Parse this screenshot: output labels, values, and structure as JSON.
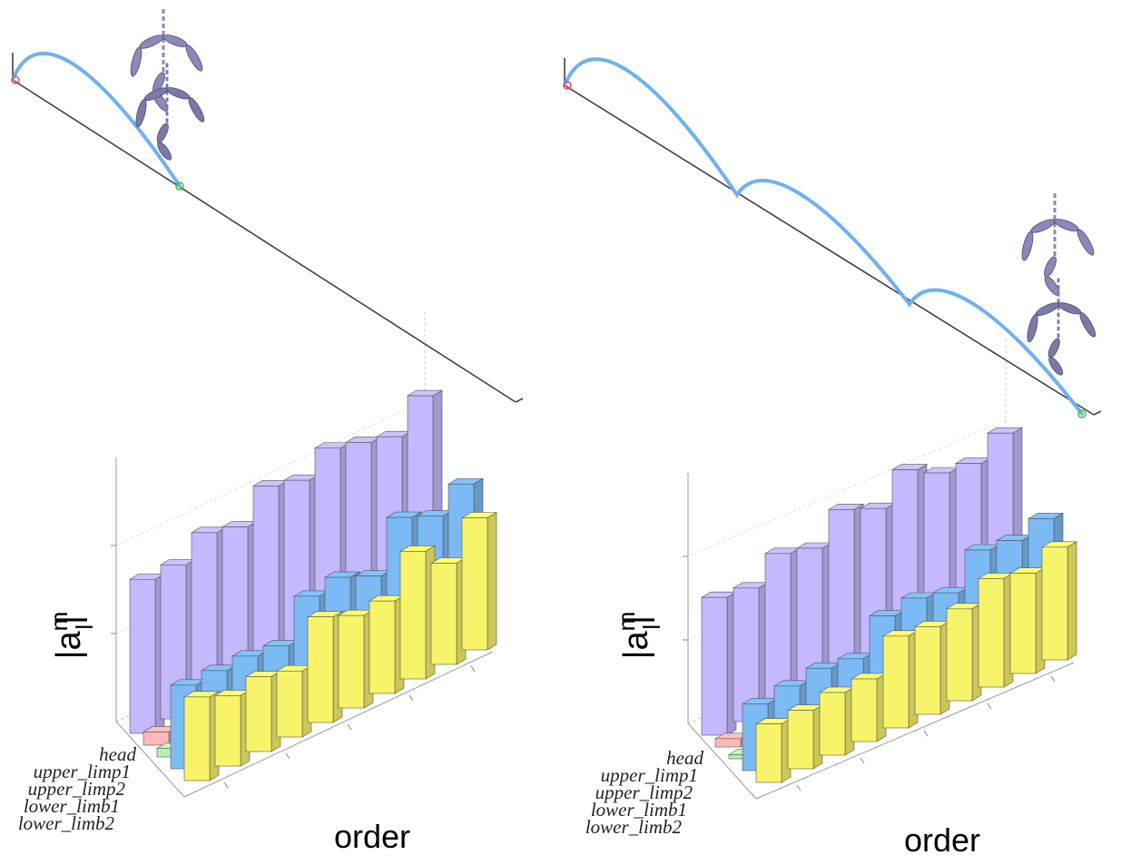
{
  "colors": {
    "head": "#c4b8ff",
    "upper_limp1": "#ffb8b8",
    "upper_limp2": "#b6f0b6",
    "lower_limb1": "#7bbaf5",
    "lower_limb2": "#f8f46a",
    "trajectory": "#6fb1ee",
    "figure": "#6e6e9c",
    "ground": "#404040"
  },
  "panels": [
    {
      "trajectory": {
        "arcs": 1
      },
      "chart_data": {
        "type": "bar3d",
        "ylabel_base": "|a",
        "ylabel_sup": "m",
        "ylabel_sub": "l",
        "ylabel_end": "|",
        "xlabel": "order",
        "series": [
          {
            "name": "head",
            "values": [
              1.75,
              1.75,
              1.95,
              1.85,
              2.15,
              2.05,
              2.25,
              2.15,
              2.05,
              2.35
            ]
          },
          {
            "name": "upper_limp1",
            "values": [
              0.15,
              0.1,
              0.2,
              0.1,
              0.25,
              0.05,
              0.05,
              0.1,
              0.05,
              0.05
            ]
          },
          {
            "name": "upper_limp2",
            "values": [
              0.1,
              0.05,
              0.05,
              0.05,
              0.05,
              0.05,
              0.05,
              0.05,
              0.05,
              0.05
            ]
          },
          {
            "name": "lower_limb1",
            "values": [
              0.95,
              0.95,
              0.95,
              0.9,
              1.3,
              1.35,
              1.2,
              1.7,
              1.55,
              1.75
            ]
          },
          {
            "name": "lower_limb2",
            "values": [
              0.95,
              0.8,
              0.85,
              0.75,
              1.2,
              1.05,
              1.05,
              1.45,
              1.15,
              1.5
            ]
          }
        ]
      }
    },
    {
      "trajectory": {
        "arcs": 3
      },
      "chart_data": {
        "type": "bar3d",
        "ylabel_base": "|a",
        "ylabel_sup": "m",
        "ylabel_sub": "l",
        "ylabel_end": "|",
        "xlabel": "order",
        "series": [
          {
            "name": "head",
            "values": [
              1.65,
              1.6,
              1.85,
              1.75,
              2.05,
              1.9,
              2.2,
              2.0,
              1.95,
              2.15
            ]
          },
          {
            "name": "upper_limp1",
            "values": [
              0.1,
              0.1,
              0.1,
              0.1,
              0.15,
              0.05,
              0.05,
              0.05,
              0.05,
              0.05
            ]
          },
          {
            "name": "upper_limp2",
            "values": [
              0.05,
              0.05,
              0.05,
              0.05,
              0.05,
              0.05,
              0.05,
              0.05,
              0.05,
              0.05
            ]
          },
          {
            "name": "lower_limb1",
            "values": [
              0.8,
              0.85,
              0.9,
              0.85,
              1.2,
              1.25,
              1.15,
              1.5,
              1.45,
              1.55
            ]
          },
          {
            "name": "lower_limb2",
            "values": [
              0.7,
              0.7,
              0.75,
              0.75,
              1.1,
              1.05,
              1.1,
              1.3,
              1.2,
              1.35
            ]
          }
        ]
      }
    }
  ]
}
